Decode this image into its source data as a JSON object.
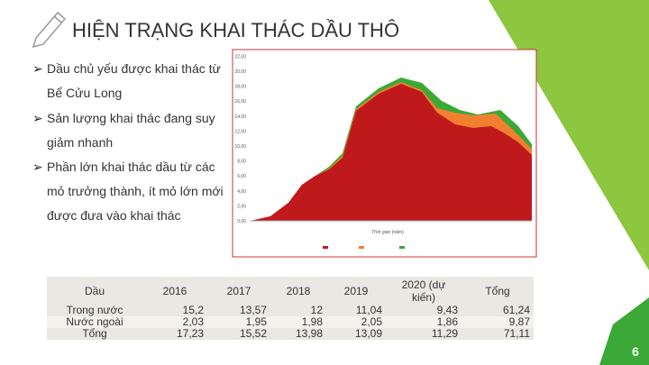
{
  "title": "HIỆN TRẠNG KHAI THÁC DẦU THÔ",
  "bullets": [
    "Dầu chủ yếu được khai thác từ Bể Cửu Long",
    "Sản lượng khai thác đang suy giảm nhanh",
    "Phần lớn khai thác dầu từ các mỏ trưởng thành, ít mỏ lớn mới được đưa vào khai thác"
  ],
  "figure": {
    "x_axis_label": "Thời gian (năm)",
    "y_ticks": [
      "0,00",
      "2,00",
      "4,00",
      "6,00",
      "8,00",
      "10,00",
      "12,00",
      "14,00",
      "16,00",
      "18,00",
      "20,00",
      "22,00"
    ]
  },
  "table": {
    "header": [
      "Dầu",
      "2016",
      "2017",
      "2018",
      "2019",
      "2020 (dự kiến)",
      "Tổng"
    ],
    "rows": [
      [
        "Trong nước",
        "15,2",
        "13,57",
        "12",
        "11,04",
        "9,43",
        "61,24"
      ],
      [
        "Nước ngoài",
        "2,03",
        "1,95",
        "1,98",
        "2,05",
        "1,86",
        "9,87"
      ],
      [
        "Tổng",
        "17,23",
        "15,52",
        "13,98",
        "13,09",
        "11,29",
        "71,11"
      ]
    ]
  },
  "page_number": "6"
}
